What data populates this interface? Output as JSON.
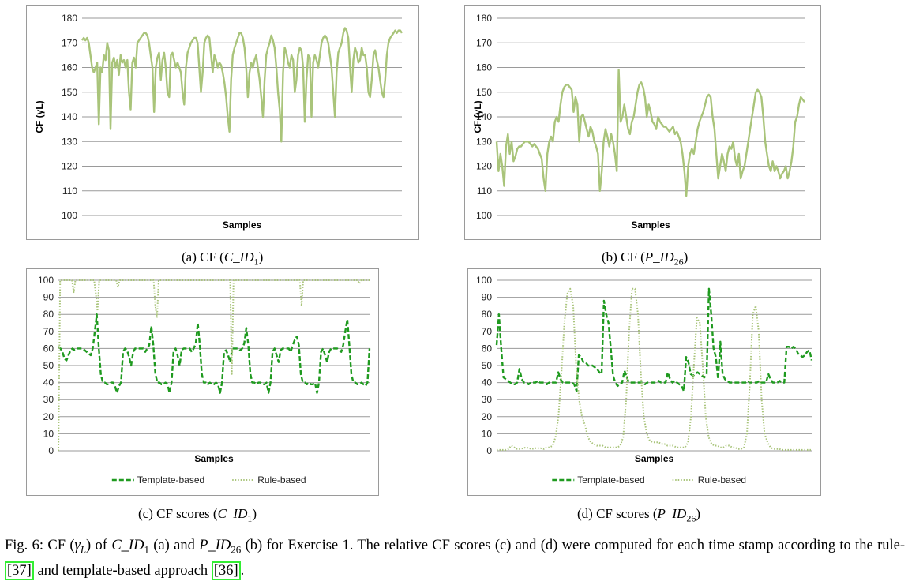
{
  "colors": {
    "light": "#a9c47a",
    "dark": "#1f9a1f",
    "grid": "#9a9a9a"
  },
  "captions": {
    "a": {
      "prefix": "(a) CF (",
      "id": "C_ID",
      "sub": "1",
      "suffix": ")"
    },
    "b": {
      "prefix": "(b) CF (",
      "id": "P_ID",
      "sub": "26",
      "suffix": ")"
    },
    "c": {
      "prefix": "(c) CF scores (",
      "id": "C_ID",
      "sub": "1",
      "suffix": ")"
    },
    "d": {
      "prefix": "(d) CF scores (",
      "id": "P_ID",
      "sub": "26",
      "suffix": ")"
    }
  },
  "figure_caption": {
    "t1": "Fig. 6: CF (",
    "gamma": "γ",
    "gamma_sub": "L",
    "t2": ") of ",
    "id1": "C_ID",
    "id1_sub": "1",
    "t3": " (a) and ",
    "id2": "P_ID",
    "id2_sub": "26",
    "t4": " (b) for Exercise 1. The relative CF scores (c) and (d) were computed for each time stamp according to the rule- ",
    "ref1": "[37]",
    "t5": " and template-based approach ",
    "ref2": "[36]",
    "t6": "."
  },
  "chart_data": [
    {
      "id": "a",
      "type": "line",
      "xlabel": "Samples",
      "ylabel": "CF (γL)",
      "ylim": [
        100,
        180
      ],
      "yticks": [
        100,
        110,
        120,
        130,
        140,
        150,
        160,
        170,
        180
      ],
      "grid": true,
      "series": [
        {
          "style": "solid",
          "color": "#a9c47a",
          "values": [
            171,
            172,
            171,
            172,
            170,
            165,
            160,
            158,
            160,
            162,
            137,
            160,
            158,
            165,
            163,
            170,
            167,
            135,
            162,
            164,
            160,
            163,
            157,
            165,
            162,
            163,
            160,
            163,
            150,
            143,
            162,
            164,
            160,
            170,
            171,
            172,
            173,
            174,
            174,
            173,
            170,
            165,
            160,
            142,
            160,
            164,
            166,
            155,
            163,
            166,
            160,
            150,
            148,
            165,
            166,
            163,
            160,
            162,
            160,
            158,
            150,
            145,
            160,
            166,
            168,
            170,
            171,
            172,
            172,
            170,
            160,
            150,
            158,
            170,
            172,
            173,
            172,
            165,
            158,
            165,
            163,
            160,
            162,
            161,
            158,
            154,
            148,
            140,
            134,
            155,
            165,
            168,
            170,
            172,
            174,
            174,
            172,
            168,
            160,
            148,
            158,
            162,
            160,
            163,
            165,
            160,
            155,
            148,
            140,
            155,
            165,
            168,
            170,
            173,
            171,
            168,
            160,
            150,
            143,
            130,
            158,
            168,
            166,
            162,
            160,
            165,
            163,
            150,
            155,
            165,
            168,
            167,
            160,
            138,
            155,
            165,
            164,
            140,
            162,
            165,
            163,
            160,
            165,
            170,
            172,
            173,
            172,
            170,
            165,
            160,
            150,
            140,
            158,
            166,
            168,
            170,
            174,
            176,
            175,
            172,
            160,
            150,
            163,
            168,
            166,
            162,
            163,
            168,
            165,
            165,
            160,
            150,
            148,
            155,
            165,
            167,
            163,
            160,
            155,
            150,
            148,
            155,
            165,
            170,
            172,
            173,
            174,
            175,
            174,
            175,
            175,
            174
          ]
        }
      ]
    },
    {
      "id": "b",
      "type": "line",
      "xlabel": "Samples",
      "ylabel": "CF (γL)",
      "ylim": [
        100,
        180
      ],
      "yticks": [
        100,
        110,
        120,
        130,
        140,
        150,
        160,
        170,
        180
      ],
      "grid": true,
      "series": [
        {
          "style": "solid",
          "color": "#a9c47a",
          "values": [
            130,
            118,
            125,
            120,
            112,
            128,
            133,
            125,
            130,
            122,
            124,
            127,
            128,
            128,
            129,
            130,
            130,
            130,
            129,
            128,
            129,
            128,
            127,
            125,
            123,
            115,
            110,
            125,
            130,
            132,
            130,
            138,
            140,
            138,
            145,
            150,
            152,
            153,
            153,
            152,
            151,
            142,
            148,
            145,
            130,
            140,
            141,
            138,
            135,
            132,
            136,
            134,
            130,
            128,
            125,
            110,
            118,
            130,
            135,
            132,
            128,
            133,
            130,
            125,
            118,
            159,
            138,
            140,
            145,
            140,
            135,
            133,
            138,
            140,
            145,
            150,
            153,
            154,
            152,
            148,
            140,
            145,
            142,
            138,
            137,
            135,
            140,
            138,
            137,
            136,
            136,
            135,
            134,
            135,
            136,
            133,
            134,
            132,
            130,
            125,
            118,
            108,
            120,
            125,
            127,
            125,
            130,
            135,
            138,
            140,
            142,
            145,
            148,
            149,
            148,
            140,
            135,
            125,
            115,
            120,
            125,
            122,
            118,
            125,
            128,
            127,
            130,
            123,
            120,
            125,
            115,
            118,
            120,
            125,
            130,
            135,
            140,
            145,
            150,
            151,
            150,
            148,
            140,
            130,
            125,
            120,
            118,
            122,
            118,
            120,
            118,
            115,
            117,
            118,
            120,
            115,
            118,
            122,
            128,
            138,
            140,
            145,
            148,
            147,
            146
          ]
        }
      ]
    },
    {
      "id": "c",
      "type": "line",
      "xlabel": "Samples",
      "ylim": [
        0,
        100
      ],
      "yticks": [
        0,
        10,
        20,
        30,
        40,
        50,
        60,
        70,
        80,
        90,
        100
      ],
      "grid": true,
      "legend": "bottom",
      "series": [
        {
          "name": "Template-based",
          "style": "dashed",
          "color": "#1f9a1f",
          "values": [
            61,
            60,
            58,
            54,
            53,
            56,
            59,
            60,
            59,
            60,
            60,
            60,
            60,
            59,
            58,
            57,
            56,
            60,
            70,
            80,
            60,
            45,
            40,
            40,
            39,
            39,
            40,
            40,
            38,
            34,
            38,
            40,
            58,
            60,
            59,
            55,
            50,
            58,
            60,
            60,
            60,
            60,
            60,
            58,
            60,
            62,
            73,
            62,
            45,
            40,
            40,
            39,
            39,
            40,
            39,
            34,
            40,
            58,
            60,
            56,
            50,
            59,
            60,
            60,
            60,
            60,
            58,
            60,
            63,
            75,
            62,
            45,
            40,
            40,
            39,
            40,
            39,
            39,
            40,
            39,
            34,
            40,
            58,
            59,
            56,
            52,
            60,
            60,
            60,
            60,
            59,
            60,
            63,
            72,
            62,
            45,
            40,
            40,
            39,
            40,
            40,
            39,
            39,
            40,
            34,
            40,
            58,
            60,
            56,
            52,
            59,
            60,
            60,
            60,
            60,
            58,
            62,
            65,
            67,
            62,
            45,
            40,
            40,
            39,
            40,
            39,
            39,
            40,
            34,
            40,
            58,
            60,
            56,
            52,
            58,
            60,
            60,
            60,
            60,
            59,
            58,
            62,
            70,
            77,
            62,
            45,
            40,
            40,
            39,
            39,
            40,
            39,
            38,
            40,
            60
          ]
        },
        {
          "name": "Rule-based",
          "style": "dotted",
          "color": "#a9c47a",
          "values": [
            0,
            100,
            100,
            100,
            100,
            100,
            100,
            100,
            100,
            93,
            100,
            100,
            100,
            100,
            100,
            100,
            100,
            100,
            100,
            100,
            100,
            100,
            92,
            82,
            100,
            100,
            100,
            100,
            100,
            100,
            100,
            100,
            100,
            100,
            100,
            96,
            100,
            100,
            100,
            100,
            100,
            100,
            100,
            100,
            100,
            100,
            100,
            100,
            100,
            100,
            100,
            100,
            100,
            100,
            100,
            100,
            100,
            85,
            78,
            100,
            100,
            100,
            100,
            100,
            100,
            100,
            100,
            100,
            100,
            100,
            100,
            100,
            100,
            100,
            100,
            100,
            100,
            100,
            100,
            100,
            100,
            100,
            100,
            100,
            100,
            100,
            100,
            100,
            100,
            100,
            100,
            100,
            100,
            100,
            100,
            100,
            100,
            100,
            100,
            100,
            100,
            100,
            45,
            100,
            100,
            100,
            100,
            100,
            100,
            100,
            100,
            100,
            100,
            100,
            100,
            100,
            100,
            100,
            100,
            100,
            100,
            100,
            100,
            100,
            100,
            100,
            100,
            100,
            100,
            100,
            100,
            100,
            100,
            100,
            100,
            100,
            100,
            100,
            100,
            100,
            100,
            100,
            100,
            85,
            100,
            100,
            100,
            100,
            100,
            100,
            100,
            100,
            100,
            100,
            100,
            100,
            100,
            100,
            100,
            100,
            100,
            100,
            100,
            100,
            100,
            100,
            100,
            100,
            100,
            100,
            100,
            100,
            100,
            100,
            100,
            100,
            100,
            98,
            100,
            100,
            100,
            100,
            100,
            100
          ]
        }
      ]
    },
    {
      "id": "d",
      "type": "line",
      "xlabel": "Samples",
      "ylim": [
        0,
        100
      ],
      "yticks": [
        0,
        10,
        20,
        30,
        40,
        50,
        60,
        70,
        80,
        90,
        100
      ],
      "grid": true,
      "legend": "bottom",
      "series": [
        {
          "name": "Template-based",
          "style": "dashed",
          "color": "#1f9a1f",
          "values": [
            62,
            80,
            60,
            43,
            42,
            41,
            40,
            39,
            39,
            40,
            48,
            42,
            40,
            40,
            39,
            40,
            40,
            40,
            41,
            40,
            40,
            40,
            39,
            40,
            40,
            40,
            40,
            46,
            42,
            40,
            40,
            40,
            40,
            40,
            39,
            35,
            56,
            55,
            52,
            52,
            50,
            50,
            50,
            49,
            48,
            46,
            45,
            88,
            80,
            75,
            60,
            44,
            40,
            38,
            39,
            40,
            47,
            43,
            40,
            40,
            40,
            40,
            40,
            40,
            40,
            39,
            40,
            40,
            40,
            40,
            40,
            41,
            40,
            40,
            40,
            46,
            42,
            40,
            41,
            40,
            39,
            38,
            35,
            55,
            52,
            45,
            44,
            45,
            46,
            45,
            44,
            43,
            45,
            95,
            80,
            60,
            55,
            42,
            64,
            45,
            42,
            41,
            40,
            40,
            40,
            40,
            40,
            40,
            40,
            40,
            41,
            40,
            40,
            40,
            40,
            41,
            40,
            40,
            40,
            45,
            42,
            40,
            40,
            40,
            41,
            40,
            40,
            61,
            61,
            60,
            61,
            60,
            57,
            56,
            55,
            56,
            58,
            59,
            53
          ]
        },
        {
          "name": "Rule-based",
          "style": "dotted",
          "color": "#a9c47a",
          "values": [
            0.5,
            0.5,
            0.5,
            0.5,
            1,
            3,
            2,
            1,
            1,
            1.5,
            2,
            1.5,
            1,
            1.5,
            1.5,
            1.5,
            1,
            2,
            2,
            3,
            8,
            20,
            45,
            75,
            92,
            95,
            85,
            50,
            30,
            20,
            15,
            8,
            5,
            4,
            3,
            3,
            3,
            2,
            2,
            2,
            2,
            2,
            3,
            8,
            30,
            70,
            95,
            95,
            80,
            45,
            20,
            10,
            6,
            5,
            5,
            5,
            4,
            4,
            3,
            3,
            3,
            2,
            2,
            2,
            2,
            5,
            20,
            50,
            78,
            75,
            50,
            20,
            8,
            4,
            3,
            3,
            2,
            2,
            3,
            3,
            2,
            2,
            1,
            1,
            2,
            10,
            40,
            80,
            85,
            70,
            30,
            10,
            5,
            2,
            1,
            1,
            1,
            0.5,
            0.5,
            0.5,
            0.5,
            0.5,
            0.5,
            0.5,
            0.5,
            0.5,
            0.5,
            0.5
          ]
        }
      ]
    }
  ]
}
